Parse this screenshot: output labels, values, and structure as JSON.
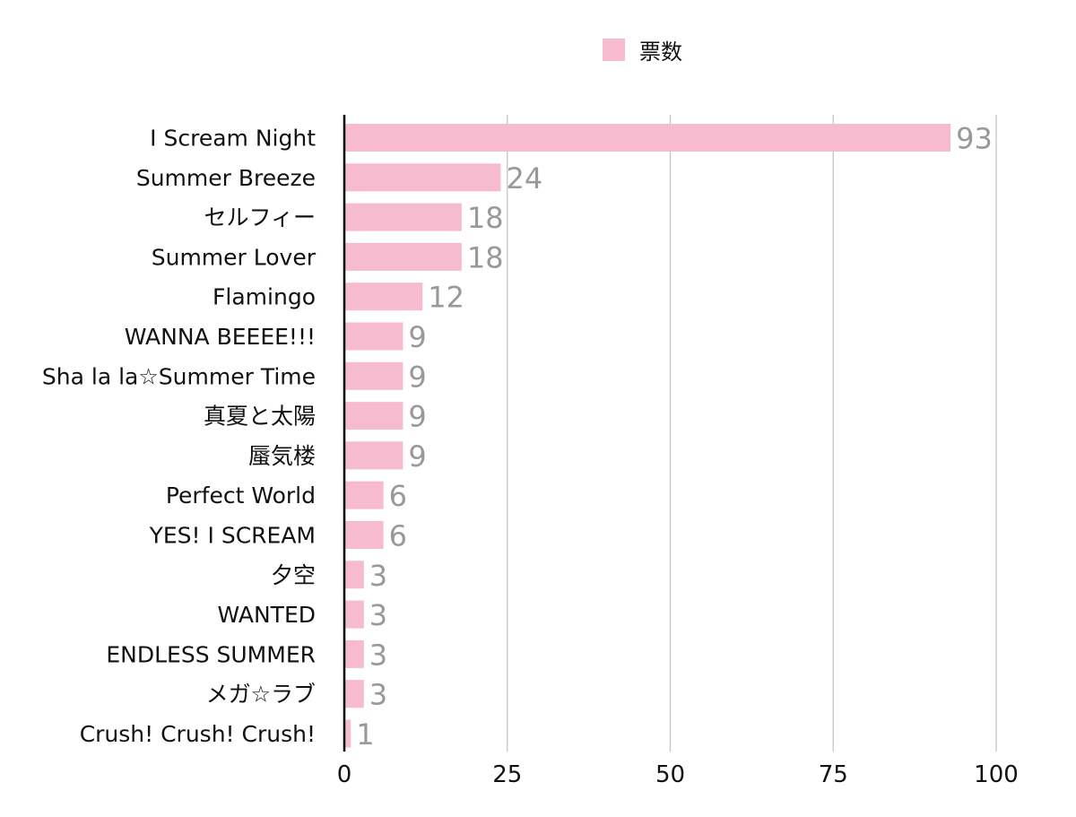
{
  "chart_data": {
    "type": "bar",
    "orientation": "horizontal",
    "categories": [
      "I Scream Night",
      "Summer Breeze",
      "セルフィー",
      "Summer Lover",
      "Flamingo",
      "WANNA BEEEE!!!",
      "Sha la la☆Summer Time",
      "真夏と太陽",
      "蜃気楼",
      "Perfect World",
      "YES! I SCREAM",
      "夕空",
      "WANTED",
      "ENDLESS SUMMER",
      "メガ☆ラブ",
      "Crush! Crush! Crush!"
    ],
    "series": [
      {
        "name": "票数",
        "values": [
          93,
          24,
          18,
          18,
          12,
          9,
          9,
          9,
          9,
          6,
          6,
          3,
          3,
          3,
          3,
          1
        ],
        "color": "#f7bbd0"
      }
    ],
    "title": "",
    "xlabel": "",
    "ylabel": "",
    "xlim": [
      0,
      100
    ],
    "xticks": [
      "0",
      "25",
      "50",
      "75",
      "100"
    ],
    "grid": "vertical",
    "legend": "top-center",
    "data_labels": true,
    "colors": {
      "bar": "#f7bbd0",
      "value_label": "#999999",
      "grid": "#c4c4c4",
      "axis": "#000000"
    }
  }
}
